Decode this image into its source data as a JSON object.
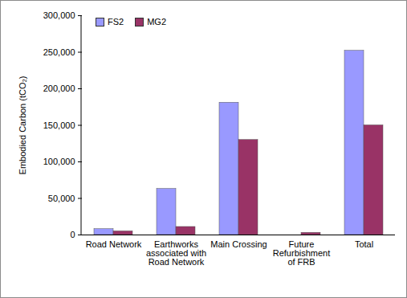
{
  "chart_data": {
    "type": "bar",
    "y_label": "Embodied Carbon (tCO₂)",
    "categories": [
      "Road Network",
      "Earthworks associated with Road Network",
      "Main Crossing",
      "Future Refurbishment of FRB",
      "Total"
    ],
    "series": [
      {
        "name": "FS2",
        "color": "#9999ff",
        "values": [
          8000,
          63000,
          181000,
          0,
          252000
        ]
      },
      {
        "name": "MG2",
        "color": "#993366",
        "values": [
          5000,
          11000,
          130000,
          3000,
          150000
        ]
      }
    ],
    "ylim": [
      0,
      300000
    ],
    "yticks": [
      0,
      {
        "value": 50000,
        "label": "50,000"
      },
      {
        "value": 100000,
        "label": "100,000"
      },
      {
        "value": 150000,
        "label": "150,000"
      },
      {
        "value": 200000,
        "label": "200,000"
      },
      {
        "value": 250000,
        "label": "250,000"
      },
      {
        "value": 300000,
        "label": "300,000"
      }
    ],
    "grid": false,
    "legend": "top-left"
  }
}
